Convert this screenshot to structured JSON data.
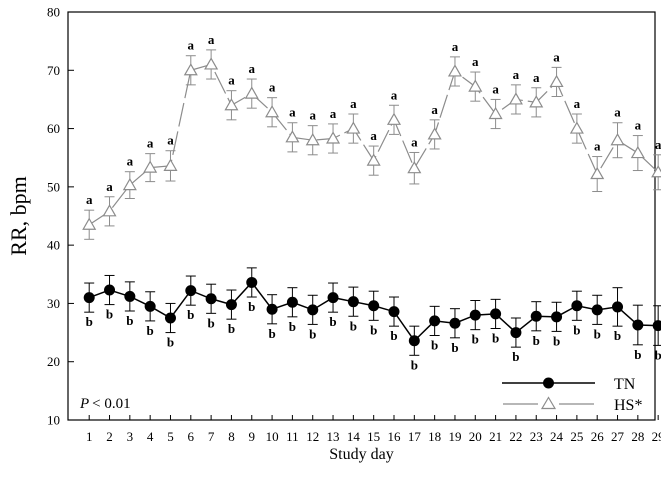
{
  "chart_data": {
    "type": "line",
    "xlabel": "Study day",
    "ylabel": "RR, bpm",
    "ylim": [
      10,
      80
    ],
    "yticks": [
      10,
      20,
      30,
      40,
      50,
      60,
      70,
      80
    ],
    "categories": [
      "1",
      "2",
      "3",
      "4",
      "5",
      "6",
      "7",
      "8",
      "9",
      "10",
      "11",
      "12",
      "13",
      "14",
      "15",
      "16",
      "17",
      "18",
      "19",
      "20",
      "21",
      "22",
      "23",
      "24",
      "25",
      "26",
      "27",
      "28",
      "29"
    ],
    "annotation": "< 0.01",
    "annotation_italic": "P",
    "grid": false,
    "legend_position": "bottom-right",
    "series": [
      {
        "name": "HS*",
        "marker": "open-triangle",
        "line_style": "long-dash",
        "color": "#8c8c8c",
        "values": [
          43.5,
          45.8,
          50.3,
          53.3,
          53.6,
          70.0,
          71.0,
          64.0,
          66.0,
          62.8,
          58.5,
          58.0,
          58.3,
          60.0,
          54.5,
          61.5,
          53.2,
          59.0,
          69.8,
          67.2,
          62.5,
          65.0,
          64.5,
          68.0,
          60.0,
          52.2,
          58.0,
          55.8,
          52.5
        ],
        "errors": [
          2.5,
          2.5,
          2.3,
          2.4,
          2.6,
          2.5,
          2.5,
          2.5,
          2.5,
          2.5,
          2.5,
          2.5,
          2.5,
          2.5,
          2.5,
          2.5,
          2.7,
          2.5,
          2.5,
          2.5,
          2.5,
          2.5,
          2.5,
          2.5,
          2.5,
          3.0,
          3.0,
          3.0,
          3.0
        ],
        "labels": [
          "a",
          "a",
          "a",
          "a",
          "a",
          "a",
          "a",
          "a",
          "a",
          "a",
          "a",
          "a",
          "a",
          "a",
          "a",
          "a",
          "a",
          "a",
          "a",
          "a",
          "a",
          "a",
          "a",
          "a",
          "a",
          "a",
          "a",
          "a",
          "a"
        ]
      },
      {
        "name": "TN",
        "marker": "filled-circle",
        "line_style": "solid",
        "color": "#000000",
        "values": [
          31.0,
          32.3,
          31.2,
          29.5,
          27.5,
          32.2,
          30.8,
          29.8,
          33.6,
          29.0,
          30.2,
          28.9,
          31.0,
          30.3,
          29.6,
          28.6,
          23.6,
          27.0,
          26.6,
          28.0,
          28.2,
          25.0,
          27.8,
          27.7,
          29.6,
          28.9,
          29.4,
          26.3,
          26.2
        ],
        "errors": [
          2.5,
          2.5,
          2.5,
          2.5,
          2.5,
          2.5,
          2.5,
          2.5,
          2.5,
          2.5,
          2.5,
          2.5,
          2.5,
          2.5,
          2.5,
          2.5,
          2.5,
          2.5,
          2.5,
          2.5,
          2.5,
          2.5,
          2.5,
          2.5,
          2.5,
          2.5,
          3.3,
          3.4,
          3.4
        ],
        "labels": [
          "b",
          "b",
          "b",
          "b",
          "b",
          "b",
          "b",
          "b",
          "b",
          "b",
          "b",
          "b",
          "b",
          "b",
          "b",
          "b",
          "b",
          "b",
          "b",
          "b",
          "b",
          "b",
          "b",
          "b",
          "b",
          "b",
          "b",
          "b",
          "b"
        ]
      }
    ]
  }
}
